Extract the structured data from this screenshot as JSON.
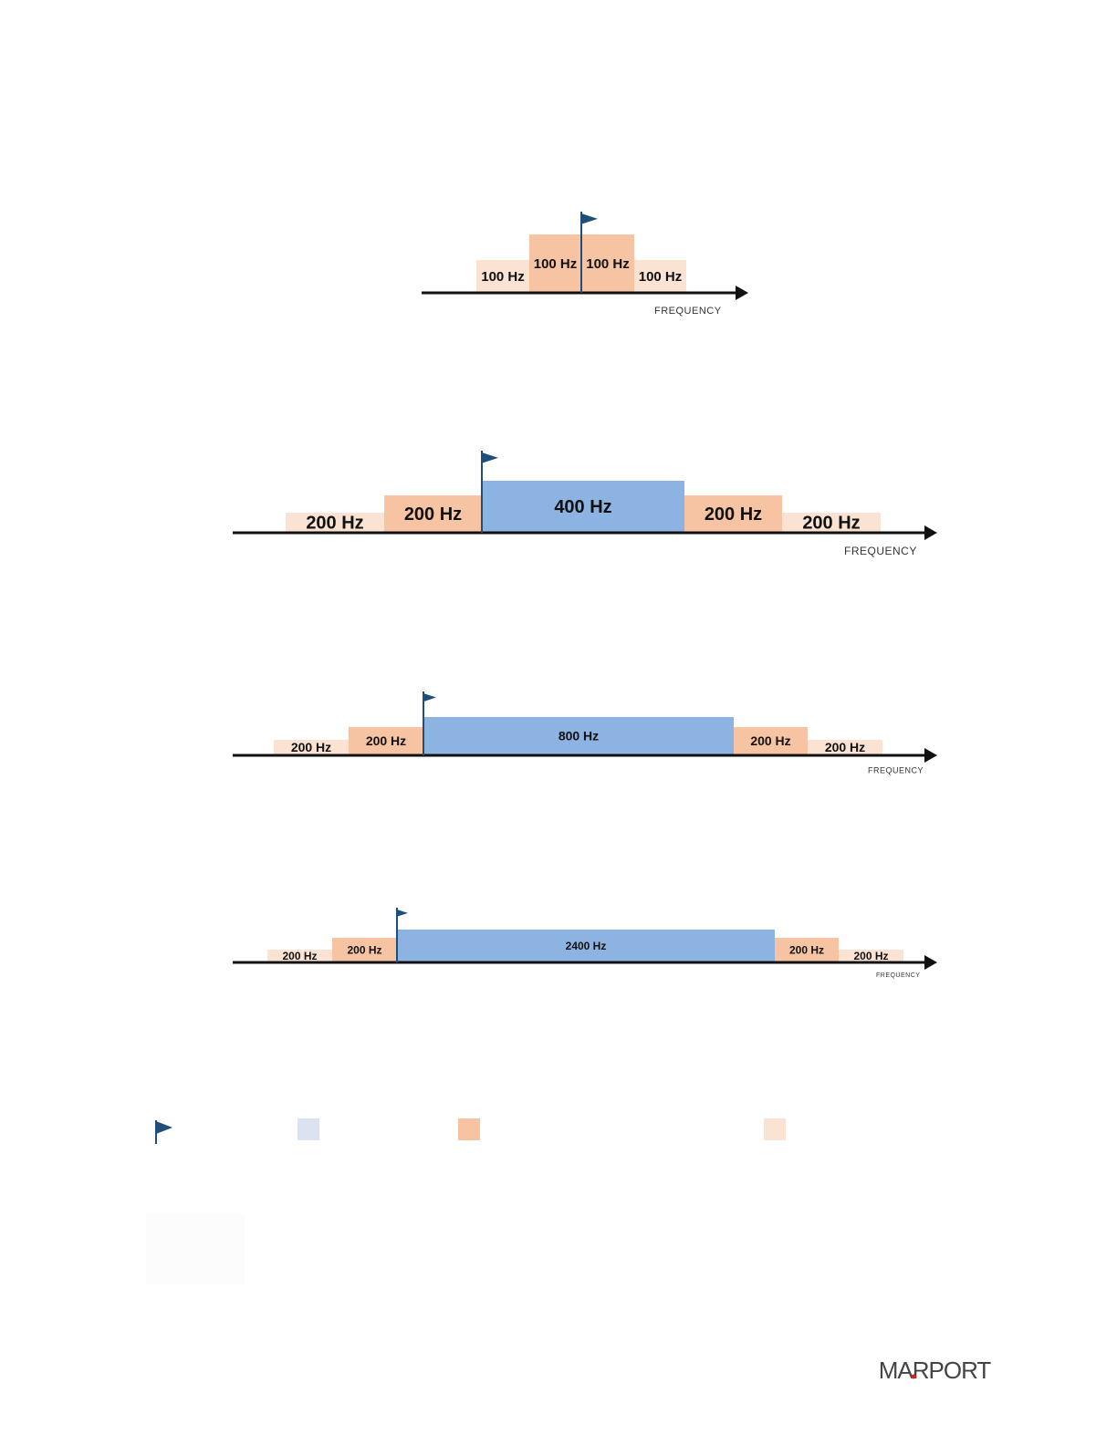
{
  "diagrams": [
    {
      "segments": [
        "100 Hz",
        "100 Hz",
        "100 Hz",
        "100 Hz"
      ],
      "axis_label": "FREQUENCY"
    },
    {
      "segments": [
        "200 Hz",
        "200 Hz",
        "400 Hz",
        "200 Hz",
        "200 Hz"
      ],
      "axis_label": "FREQUENCY"
    },
    {
      "segments": [
        "200 Hz",
        "200 Hz",
        "800 Hz",
        "200 Hz",
        "200 Hz"
      ],
      "axis_label": "FREQUENCY"
    },
    {
      "segments": [
        "200 Hz",
        "200 Hz",
        "2400 Hz",
        "200 Hz",
        "200 Hz"
      ],
      "axis_label": "FREQUENCY"
    }
  ],
  "logo": "MARPORT"
}
